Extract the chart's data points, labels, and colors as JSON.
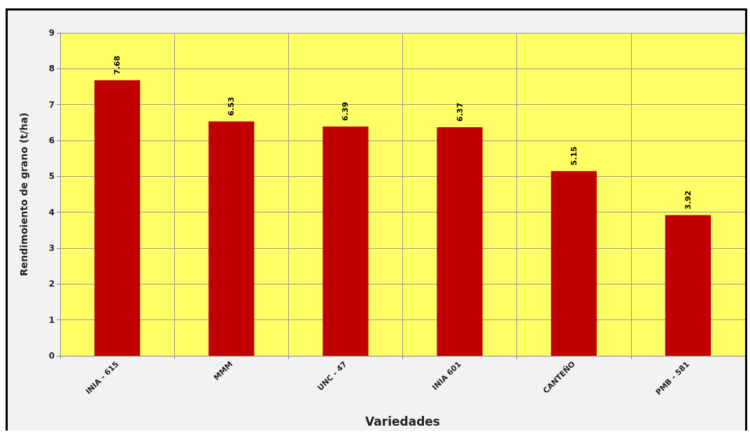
{
  "chart_data": {
    "type": "bar",
    "xlabel": "Variedades",
    "ylabel": "Rendimoiento de grano (t/ha)",
    "categories": [
      "INIA - 615",
      "MMM",
      "UNC - 47",
      "INIA 601",
      "CANTEÑO",
      "PMB - 581"
    ],
    "values": [
      7.68,
      6.53,
      6.39,
      6.37,
      5.15,
      3.92
    ],
    "color": "#c00000",
    "ylim": [
      0,
      9
    ],
    "yticks": [
      0,
      1,
      2,
      3,
      4,
      5,
      6,
      7,
      8,
      9
    ],
    "grid": true,
    "data_labels": true
  }
}
